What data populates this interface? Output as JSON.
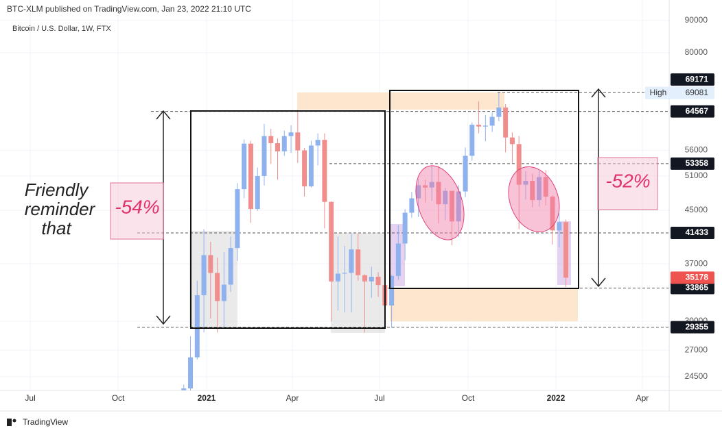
{
  "chart_data": {
    "type": "candlestick",
    "title": "BTC-XLM published on TradingView.com, Jan 23, 2022 21:10 UTC",
    "subtitle": "Bitcoin / U.S. Dollar, 1W, FTX",
    "branding": "TradingView",
    "log_scale": true,
    "grid": true,
    "up_color": "#8fb1ee",
    "down_color": "#f08e8e",
    "xlim": [
      -4,
      95.3
    ],
    "xticks": [
      {
        "value": 0,
        "label": "Jul"
      },
      {
        "value": 13.1,
        "label": "Oct"
      },
      {
        "value": 26.3,
        "label": "2021"
      },
      {
        "value": 39.1,
        "label": "Apr"
      },
      {
        "value": 52.1,
        "label": "Jul"
      },
      {
        "value": 65.3,
        "label": "Oct"
      },
      {
        "value": 78.4,
        "label": "2022"
      },
      {
        "value": 91.3,
        "label": "Apr"
      }
    ],
    "ylim": [
      23300,
      91800
    ],
    "yticks": [
      24500,
      27000,
      30000,
      37000,
      45000,
      51000,
      56000,
      80000,
      90000
    ],
    "x": [
      22.9,
      23.9,
      24.9,
      25.9,
      26.9,
      27.9,
      28.9,
      29.9,
      30.9,
      31.9,
      32.9,
      33.9,
      34.9,
      35.9,
      36.9,
      37.9,
      38.9,
      39.9,
      40.9,
      41.9,
      42.9,
      43.9,
      44.9,
      45.9,
      46.9,
      47.9,
      48.9,
      49.9,
      50.9,
      51.9,
      52.9,
      53.9,
      54.9,
      55.9,
      56.9,
      57.9,
      58.9,
      59.9,
      60.9,
      61.9,
      62.9,
      63.9,
      64.9,
      65.9,
      66.9,
      67.9,
      68.9,
      69.9,
      70.9,
      71.9,
      72.9,
      73.9,
      74.9,
      75.9,
      76.9,
      77.9,
      78.9,
      79.9
    ],
    "open": [
      19270,
      23480,
      26300,
      33000,
      38200,
      35800,
      32300,
      34300,
      39200,
      48600,
      57400,
      45200,
      51000,
      59000,
      57500,
      55800,
      59000,
      59800,
      56000,
      49100,
      57000,
      58200,
      46400,
      34700,
      35700,
      35800,
      39000,
      35500,
      34700,
      35300,
      34240,
      31780,
      35400,
      39850,
      44600,
      47000,
      49300,
      48900,
      49900,
      46000,
      48300,
      43200,
      48200,
      54900,
      61500,
      61100,
      61300,
      63300,
      65500,
      58700,
      57300,
      49400,
      50100,
      46700,
      50800,
      47300,
      41800,
      43100
    ],
    "high": [
      23800,
      28400,
      34800,
      42000,
      40100,
      37850,
      38600,
      40900,
      49700,
      58300,
      58000,
      52600,
      61700,
      60600,
      58500,
      60200,
      61400,
      64900,
      56500,
      58000,
      59600,
      59600,
      46500,
      40900,
      39500,
      41300,
      41300,
      35600,
      36600,
      35900,
      34700,
      35500,
      42600,
      45200,
      48100,
      50500,
      50300,
      52900,
      52900,
      48800,
      48300,
      49300,
      56600,
      62000,
      67000,
      63700,
      64300,
      69081,
      66300,
      59800,
      59000,
      51900,
      51400,
      51900,
      52100,
      47500,
      44500,
      43500
    ],
    "low": [
      19000,
      21900,
      26100,
      28800,
      30300,
      28800,
      29200,
      33400,
      37400,
      47000,
      43000,
      44900,
      49300,
      53300,
      50300,
      54900,
      55500,
      53500,
      47300,
      48900,
      53000,
      42100,
      30000,
      31200,
      31000,
      31000,
      34800,
      28800,
      32700,
      32800,
      31100,
      29300,
      34900,
      37500,
      43800,
      43900,
      46300,
      46600,
      42900,
      43400,
      39600,
      40800,
      47200,
      53900,
      59600,
      57900,
      59900,
      62300,
      55600,
      53500,
      42000,
      46800,
      45500,
      45600,
      45800,
      39700,
      39300,
      34000
    ],
    "close": [
      23480,
      26300,
      33000,
      38200,
      35800,
      32300,
      34300,
      39200,
      48600,
      57400,
      45200,
      51000,
      59000,
      57500,
      55800,
      59000,
      59800,
      56000,
      49100,
      57000,
      58200,
      46400,
      34700,
      35700,
      35800,
      39000,
      35500,
      34700,
      35300,
      34240,
      31780,
      35400,
      39850,
      44600,
      47000,
      49300,
      48900,
      49900,
      46000,
      48300,
      43200,
      48200,
      54900,
      61500,
      61100,
      61300,
      63300,
      65500,
      58700,
      57300,
      49400,
      50100,
      46700,
      50800,
      47300,
      41800,
      43100,
      35178
    ],
    "price_levels": [
      69171,
      64567,
      53358,
      41433,
      33865,
      29355
    ],
    "high_label": {
      "label": "High",
      "value": 69081
    },
    "last_price": 35178,
    "annotations": {
      "note": [
        "Friendly",
        "reminder",
        "that"
      ],
      "left_drop": "-54%",
      "right_drop": "-52%"
    }
  }
}
